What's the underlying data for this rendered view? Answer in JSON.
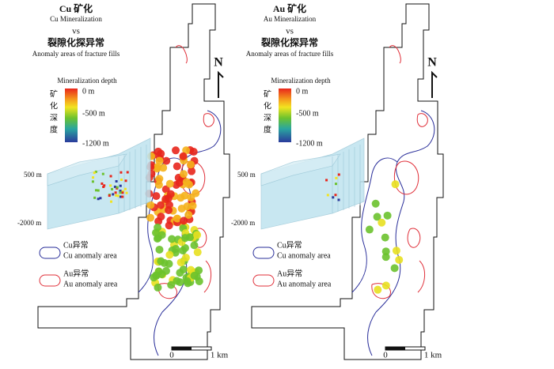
{
  "panels": [
    {
      "title_cn": "Cu 矿化",
      "title_en": "Cu Mineralization",
      "vs": "vs",
      "subtitle_cn": "裂隙化探异常",
      "subtitle_en": "Anomaly areas of fracture fills",
      "colorbar": {
        "title": "Mineralization depth",
        "labels": [
          "0 m",
          "-500 m",
          "-1200 m"
        ],
        "side_label": [
          "矿",
          "化",
          "深",
          "度"
        ]
      },
      "block_labels": [
        "500 m",
        "-2000 m"
      ],
      "legend": [
        {
          "cn": "Cu异常",
          "en": "Cu anomaly area"
        },
        {
          "cn": "Au异常",
          "en": "Au anomaly area"
        }
      ],
      "scale": [
        "0",
        "1 km"
      ],
      "north": "N"
    },
    {
      "title_cn": "Au 矿化",
      "title_en": "Au Mineralization",
      "vs": "vs",
      "subtitle_cn": "裂隙化探异常",
      "subtitle_en": "Anomaly areas of fracture fills",
      "colorbar": {
        "title": "Mineralization depth",
        "labels": [
          "0 m",
          "-500 m",
          "-1200 m"
        ],
        "side_label": [
          "矿",
          "化",
          "深",
          "度"
        ]
      },
      "block_labels": [
        "500 m",
        "-2000 m"
      ],
      "legend": [
        {
          "cn": "Cu异常",
          "en": "Cu anomaly area"
        },
        {
          "cn": "Au异常",
          "en": "Au anomaly area"
        }
      ],
      "scale": [
        "0",
        "1 km"
      ],
      "north": "N"
    }
  ]
}
